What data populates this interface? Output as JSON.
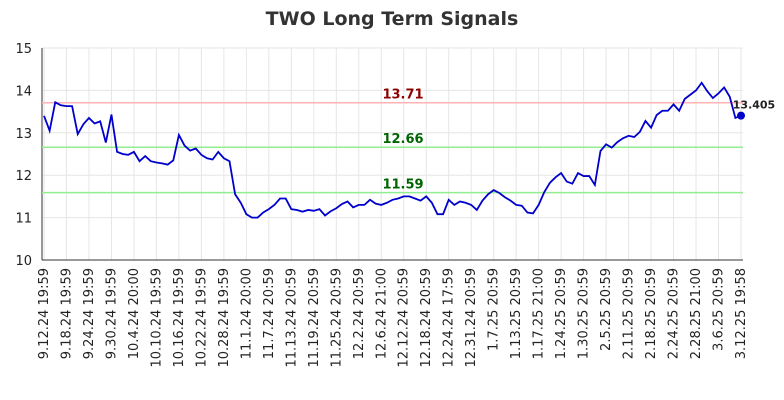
{
  "chart_data": {
    "type": "line",
    "title": "TWO Long Term Signals",
    "categories": [
      "9.12.24 19:59",
      null,
      null,
      null,
      "9.18.24 19:59",
      null,
      null,
      null,
      "9.24.24 19:59",
      null,
      null,
      null,
      "9.30.24 19:59",
      null,
      null,
      null,
      "10.4.24 20:00",
      null,
      null,
      null,
      "10.10.24 19:59",
      null,
      null,
      null,
      "10.16.24 19:59",
      null,
      null,
      null,
      "10.22.24 19:59",
      null,
      null,
      null,
      "10.28.24 19:59",
      null,
      null,
      null,
      "11.1.24 20:00",
      null,
      null,
      null,
      "11.7.24 20:59",
      null,
      null,
      null,
      "11.13.24 20:59",
      null,
      null,
      null,
      "11.19.24 20:59",
      null,
      null,
      null,
      "11.25.24 20:59",
      null,
      null,
      null,
      "12.2.24 20:59",
      null,
      null,
      null,
      "12.6.24 21:00",
      null,
      null,
      null,
      "12.12.24 20:59",
      null,
      null,
      null,
      "12.18.24 20:59",
      null,
      null,
      null,
      "12.24.24 17:59",
      null,
      null,
      null,
      "12.31.24 20:59",
      null,
      null,
      null,
      "1.7.25 20:59",
      null,
      null,
      null,
      "1.13.25 20:59",
      null,
      null,
      null,
      "1.17.25 21:00",
      null,
      null,
      null,
      "1.24.25 20:59",
      null,
      null,
      null,
      "1.30.25 20:59",
      null,
      null,
      null,
      "2.5.25 20:59",
      null,
      null,
      null,
      "2.11.25 20:59",
      null,
      null,
      null,
      "2.18.25 20:59",
      null,
      null,
      null,
      "2.24.25 20:59",
      null,
      null,
      null,
      "2.28.25 21:00",
      null,
      null,
      null,
      "3.6.25 20:59",
      null,
      null,
      null,
      "3.12.25 19:58"
    ],
    "series": [
      {
        "name": "TWO",
        "color": "#0000cc",
        "values": [
          13.4,
          13.05,
          13.72,
          13.65,
          13.63,
          13.63,
          12.97,
          13.2,
          13.35,
          13.22,
          13.27,
          12.77,
          13.43,
          12.55,
          12.5,
          12.48,
          12.55,
          12.33,
          12.45,
          12.33,
          12.3,
          12.28,
          12.25,
          12.35,
          12.95,
          12.7,
          12.58,
          12.63,
          12.48,
          12.4,
          12.37,
          12.55,
          12.4,
          12.33,
          11.55,
          11.35,
          11.08,
          11.0,
          11.0,
          11.12,
          11.2,
          11.3,
          11.45,
          11.45,
          11.2,
          11.18,
          11.14,
          11.18,
          11.16,
          11.2,
          11.05,
          11.15,
          11.22,
          11.32,
          11.38,
          11.24,
          11.3,
          11.3,
          11.42,
          11.33,
          11.3,
          11.35,
          11.42,
          11.45,
          11.5,
          11.5,
          11.45,
          11.4,
          11.5,
          11.35,
          11.08,
          11.08,
          11.42,
          11.3,
          11.38,
          11.35,
          11.3,
          11.18,
          11.4,
          11.55,
          11.65,
          11.58,
          11.48,
          11.4,
          11.3,
          11.28,
          11.12,
          11.1,
          11.3,
          11.6,
          11.82,
          11.95,
          12.05,
          11.85,
          11.8,
          12.05,
          11.98,
          11.98,
          11.77,
          12.57,
          12.73,
          12.65,
          12.78,
          12.87,
          12.93,
          12.9,
          13.02,
          13.28,
          13.12,
          13.42,
          13.52,
          13.52,
          13.67,
          13.52,
          13.8,
          13.9,
          14.0,
          14.18,
          13.98,
          13.82,
          13.93,
          14.07,
          13.85,
          13.35,
          13.405
        ]
      }
    ],
    "hlines": [
      {
        "value": 13.71,
        "color": "#ffb3b3",
        "label_color": "#8b0000"
      },
      {
        "value": 12.66,
        "color": "#90ee90",
        "label_color": "#006400"
      },
      {
        "value": 11.59,
        "color": "#90ee90",
        "label_color": "#006400"
      }
    ],
    "ylim": [
      10,
      15
    ],
    "yticks": [
      10,
      11,
      12,
      13,
      14,
      15
    ],
    "grid": true
  }
}
